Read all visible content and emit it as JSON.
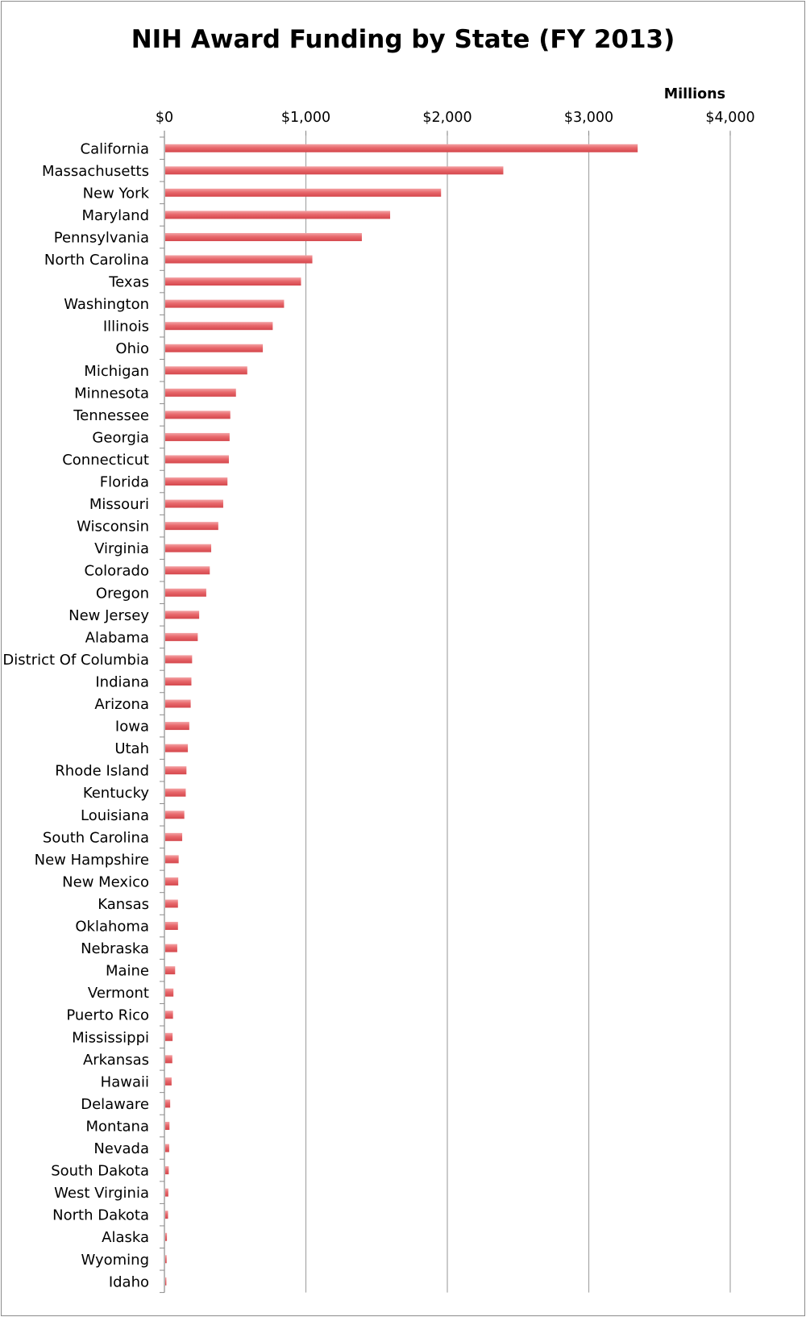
{
  "chart_data": {
    "type": "bar",
    "orientation": "horizontal",
    "title": "NIH Award Funding by State (FY 2013)",
    "unit_label": "Millions",
    "x_ticks": [
      "$0",
      "$1,000",
      "$2,000",
      "$3,000",
      "$4,000"
    ],
    "xlim": [
      0,
      4000
    ],
    "grid": true,
    "bar_color": "#e8686c",
    "categories": [
      "California",
      "Massachusetts",
      "New York",
      "Maryland",
      "Pennsylvania",
      "North Carolina",
      "Texas",
      "Washington",
      "Illinois",
      "Ohio",
      "Michigan",
      "Minnesota",
      "Tennessee",
      "Georgia",
      "Connecticut",
      "Florida",
      "Missouri",
      "Wisconsin",
      "Virginia",
      "Colorado",
      "Oregon",
      "New Jersey",
      "Alabama",
      "District Of Columbia",
      "Indiana",
      "Arizona",
      "Iowa",
      "Utah",
      "Rhode Island",
      "Kentucky",
      "Louisiana",
      "South Carolina",
      "New Hampshire",
      "New Mexico",
      "Kansas",
      "Oklahoma",
      "Nebraska",
      "Maine",
      "Vermont",
      "Puerto Rico",
      "Mississippi",
      "Arkansas",
      "Hawaii",
      "Delaware",
      "Montana",
      "Nevada",
      "South Dakota",
      "West Virginia",
      "North Dakota",
      "Alaska",
      "Wyoming",
      "Idaho"
    ],
    "values": [
      3340,
      2390,
      1950,
      1590,
      1390,
      1040,
      960,
      840,
      760,
      690,
      580,
      500,
      460,
      455,
      450,
      440,
      410,
      375,
      325,
      315,
      290,
      240,
      230,
      190,
      185,
      180,
      170,
      160,
      150,
      145,
      135,
      120,
      95,
      92,
      90,
      90,
      85,
      70,
      58,
      55,
      52,
      50,
      45,
      35,
      30,
      28,
      25,
      22,
      20,
      12,
      10,
      8
    ]
  }
}
